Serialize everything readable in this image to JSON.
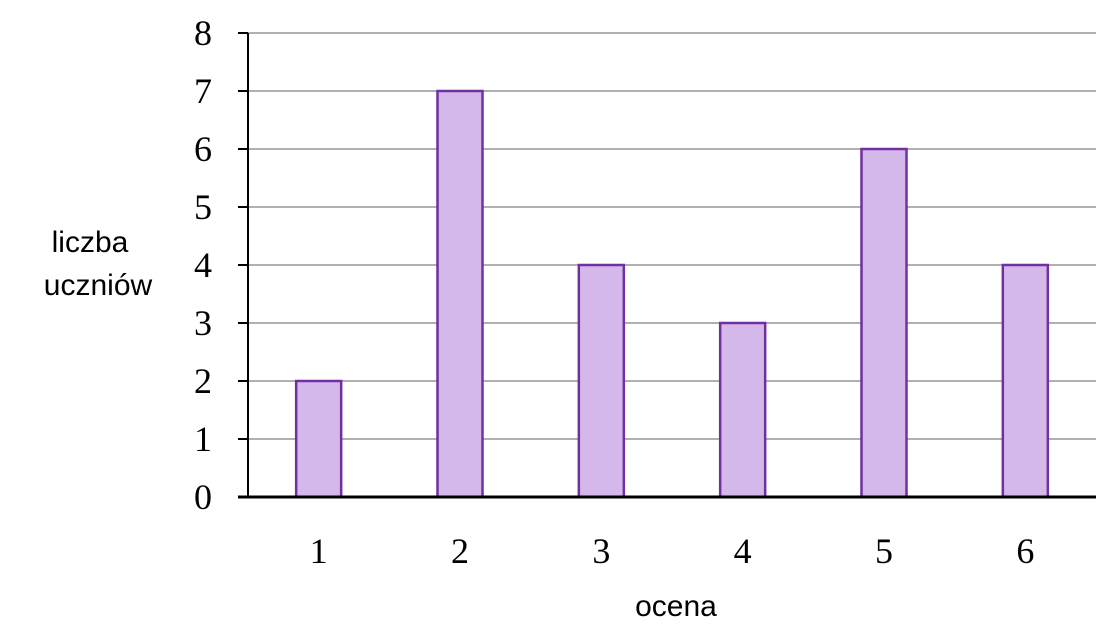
{
  "chart_data": {
    "type": "bar",
    "categories": [
      "1",
      "2",
      "3",
      "4",
      "5",
      "6"
    ],
    "values": [
      2,
      7,
      4,
      3,
      6,
      4
    ],
    "title": "",
    "xlabel": "ocena",
    "ylabel_lines": [
      "liczba",
      "uczniów"
    ],
    "ylim": [
      0,
      8
    ],
    "yticks": [
      "0",
      "1",
      "2",
      "3",
      "4",
      "5",
      "6",
      "7",
      "8"
    ],
    "grid": true,
    "colors": {
      "bar_fill": "#d5b8ea",
      "bar_stroke": "#7030a0",
      "grid": "#808080",
      "axis": "#000000"
    }
  }
}
